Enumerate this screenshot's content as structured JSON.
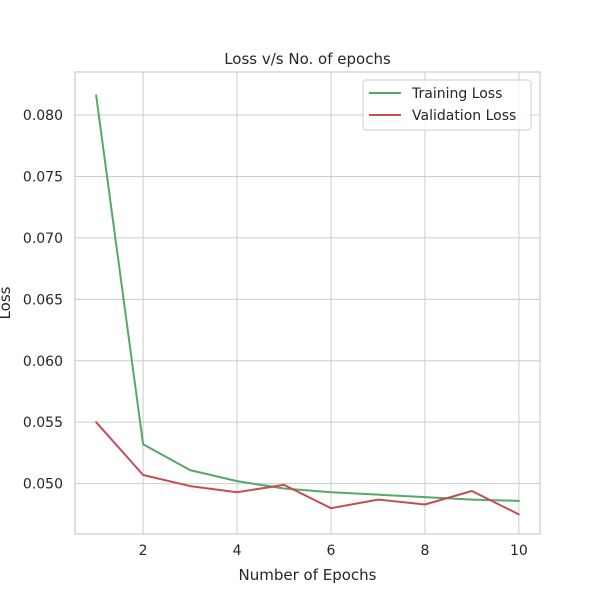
{
  "chart_data": {
    "type": "line",
    "title": "Loss v/s No. of epochs",
    "xlabel": "Number of Epochs",
    "ylabel": "Loss",
    "xlim": [
      0.55,
      10.45
    ],
    "ylim": [
      0.0459,
      0.0835
    ],
    "xticks": [
      2,
      4,
      6,
      8,
      10
    ],
    "yticks": [
      0.05,
      0.055,
      0.06,
      0.065,
      0.07,
      0.075,
      0.08
    ],
    "xtick_labels": [
      "2",
      "4",
      "6",
      "8",
      "10"
    ],
    "ytick_labels": [
      "0.050",
      "0.055",
      "0.060",
      "0.065",
      "0.070",
      "0.075",
      "0.080"
    ],
    "grid": true,
    "legend_position": "top-right",
    "x": [
      1,
      2,
      3,
      4,
      5,
      6,
      7,
      8,
      9,
      10
    ],
    "series": [
      {
        "name": "Training Loss",
        "color": "#55a868",
        "values": [
          0.0816,
          0.0532,
          0.0511,
          0.0502,
          0.0496,
          0.0493,
          0.0491,
          0.0489,
          0.0487,
          0.0486
        ]
      },
      {
        "name": "Validation Loss",
        "color": "#c44e52",
        "values": [
          0.055,
          0.0507,
          0.0498,
          0.0493,
          0.0499,
          0.048,
          0.0487,
          0.0483,
          0.0494,
          0.0475
        ]
      }
    ]
  }
}
